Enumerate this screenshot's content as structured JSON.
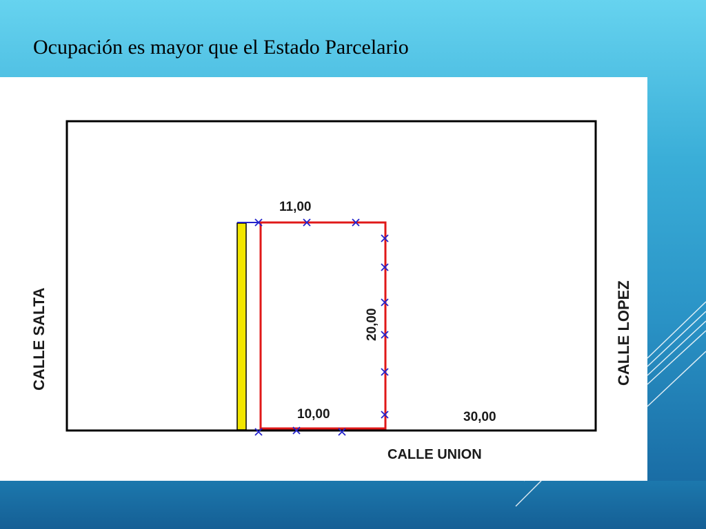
{
  "slide": {
    "title": "Ocupación es mayor que el Estado Parcelario"
  },
  "diagram": {
    "streets": {
      "left": "CALLE SALTA",
      "right": "CALLE LOPEZ",
      "bottom": "CALLE UNION"
    },
    "dimensions": {
      "top": "11,00",
      "bottom": "10,00",
      "side": "20,00",
      "block_width": "30,00"
    },
    "colors": {
      "parcel_outline": "#e01818",
      "occupation_strip": "#f2e600",
      "markers": "#2222cc",
      "block_outline": "#000000"
    },
    "icons": {
      "marker": "x-marker-icon"
    }
  }
}
